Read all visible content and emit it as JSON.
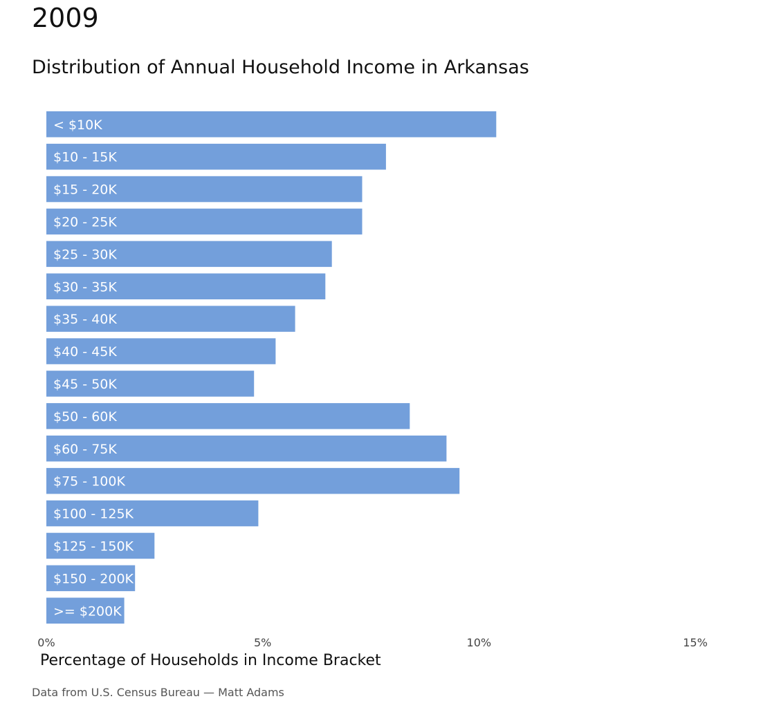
{
  "header": {
    "year": "2009",
    "subtitle": "Distribution of Annual Household Income in Arkansas"
  },
  "footer": {
    "source": "Data from U.S. Census Bureau — Matt Adams"
  },
  "colors": {
    "bar": "#739FDB"
  },
  "chart_data": {
    "type": "bar",
    "orientation": "horizontal",
    "title": "Distribution of Annual Household Income in Arkansas",
    "xlabel": "Percentage of Households in Income Bracket",
    "ylabel": "",
    "categories": [
      "< $10K",
      "$10 - 15K",
      "$15 - 20K",
      "$20 - 25K",
      "$25 - 30K",
      "$30 - 35K",
      "$35 - 40K",
      "$40 - 45K",
      "$45 - 50K",
      "$50 - 60K",
      "$60 - 75K",
      "$75 - 100K",
      "$100 - 125K",
      "$125 - 150K",
      "$150 - 200K",
      ">= $200K"
    ],
    "values": [
      10.4,
      7.85,
      7.3,
      7.3,
      6.6,
      6.45,
      5.75,
      5.3,
      4.8,
      8.4,
      9.25,
      9.55,
      4.9,
      2.5,
      2.05,
      1.8
    ],
    "xlim": [
      0,
      15
    ],
    "xticks": [
      0,
      5,
      10,
      15
    ],
    "xtick_labels": [
      "0%",
      "5%",
      "10%",
      "15%"
    ],
    "grid": false,
    "legend": "none"
  }
}
